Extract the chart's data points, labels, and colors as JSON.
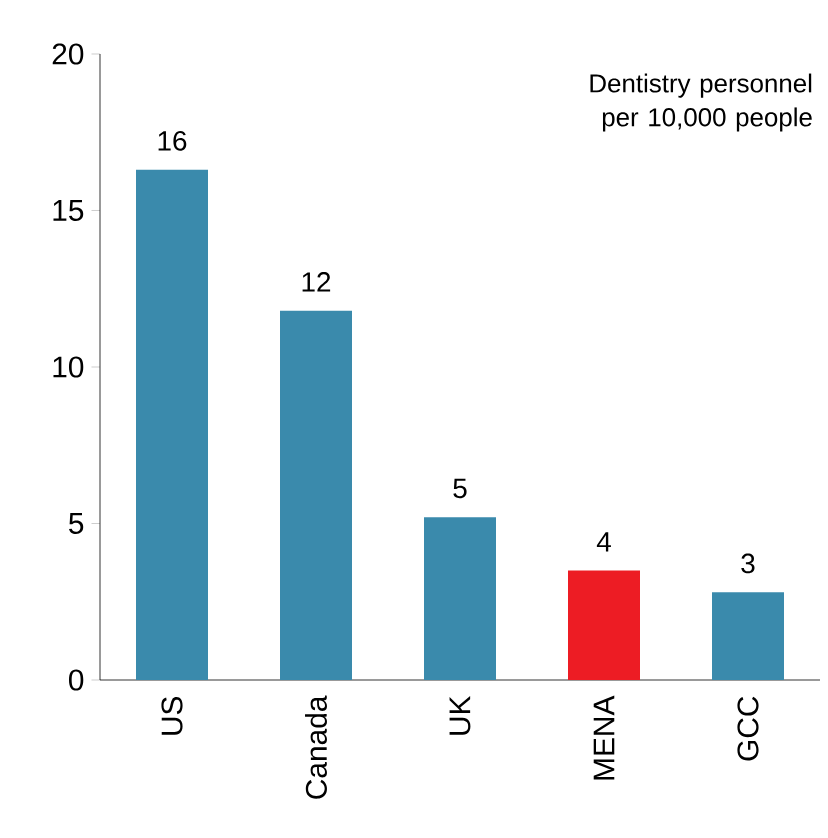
{
  "chart_data": {
    "type": "bar",
    "categories": [
      "US",
      "Canada",
      "UK",
      "MENA",
      "GCC"
    ],
    "values": [
      16.3,
      11.8,
      5.2,
      3.5,
      2.8
    ],
    "colors": [
      "#3a8aac",
      "#3a8aac",
      "#3a8aac",
      "#ed1c24",
      "#3a8aac"
    ],
    "value_labels": [
      "16",
      "12",
      "5",
      "4",
      "3"
    ],
    "ylim": [
      0,
      20
    ],
    "yticks": [
      0,
      5,
      10,
      15,
      20
    ],
    "annotations": [
      "Dentistry personnel per 10,000 people"
    ]
  }
}
